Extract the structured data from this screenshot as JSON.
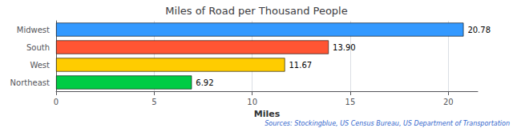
{
  "chart_data": {
    "type": "bar",
    "orientation": "horizontal",
    "title": "Miles of Road per Thousand People",
    "categories": [
      "Northeast",
      "West",
      "South",
      "Midwest"
    ],
    "values": [
      6.92,
      11.67,
      13.9,
      20.78
    ],
    "value_labels": [
      "6.92",
      "11.67",
      "13.90",
      "20.78"
    ],
    "colors": [
      "#00CC44",
      "#FFCC00",
      "#FF5533",
      "#3399FF"
    ],
    "xlabel": "Miles",
    "xlim": [
      0,
      21.5
    ],
    "xticks": [
      0,
      5,
      10,
      15,
      20
    ],
    "grid": true,
    "data_labels": true,
    "annotations": [
      "Sources: Stockingblue, US Census Bureau, US Department of Transportation"
    ]
  }
}
